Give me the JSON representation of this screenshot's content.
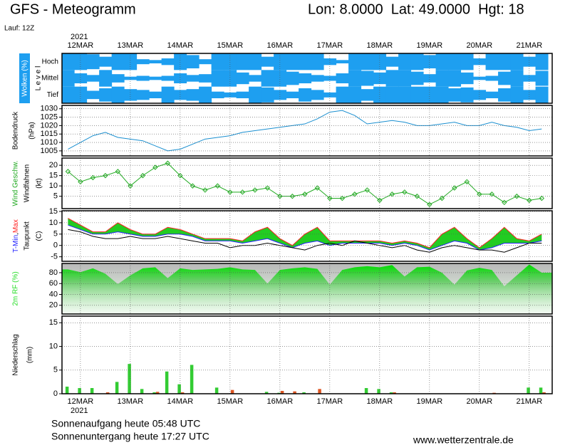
{
  "header": {
    "title": "GFS - Meteogramm",
    "location": "Lon: 8.0000  Lat: 49.0000  Hgt: 18",
    "run": "Lauf: 12Z"
  },
  "chart_data": {
    "type": "meteogram",
    "year": "2021",
    "x": [
      11.75,
      12,
      12.25,
      12.5,
      12.75,
      13,
      13.25,
      13.5,
      13.75,
      14,
      14.25,
      14.5,
      14.75,
      15,
      15.25,
      15.5,
      15.75,
      16,
      16.25,
      16.5,
      16.75,
      17,
      17.25,
      17.5,
      17.75,
      18,
      18.25,
      18.5,
      18.75,
      19,
      19.25,
      19.5,
      19.75,
      20,
      20.25,
      20.5,
      20.75,
      21,
      21.25
    ],
    "xlim": [
      11.63,
      21.46
    ],
    "xticks": [
      {
        "value": 12,
        "label": "12MAR"
      },
      {
        "value": 13,
        "label": "13MAR"
      },
      {
        "value": 14,
        "label": "14MAR"
      },
      {
        "value": 15,
        "label": "15MAR"
      },
      {
        "value": 16,
        "label": "16MAR"
      },
      {
        "value": 17,
        "label": "17MAR"
      },
      {
        "value": 18,
        "label": "18MAR"
      },
      {
        "value": 19,
        "label": "19MAR"
      },
      {
        "value": 20,
        "label": "20MAR"
      },
      {
        "value": 21,
        "label": "21MAR"
      }
    ],
    "panels": [
      {
        "type": "clouds",
        "title": "Wolken (%)",
        "title2": "L e v e l",
        "color": "#1e9ff0",
        "series": [
          {
            "name": "Hoch",
            "values": [
              100,
              100,
              90,
              60,
              100,
              100,
              30,
              20,
              40,
              100,
              80,
              30,
              100,
              100,
              100,
              100,
              60,
              100,
              100,
              100,
              100,
              40,
              20,
              100,
              100,
              100,
              60,
              100,
              100,
              80,
              100,
              100,
              100,
              40,
              100,
              100,
              100,
              60,
              100
            ]
          },
          {
            "name": "Mittel",
            "values": [
              100,
              60,
              40,
              100,
              50,
              20,
              30,
              20,
              30,
              60,
              40,
              50,
              100,
              100,
              70,
              40,
              100,
              100,
              80,
              60,
              40,
              30,
              60,
              100,
              90,
              70,
              100,
              100,
              80,
              50,
              100,
              100,
              70,
              20,
              30,
              80,
              100,
              40,
              90
            ]
          },
          {
            "name": "Tief",
            "values": [
              100,
              100,
              50,
              80,
              100,
              70,
              60,
              40,
              100,
              60,
              70,
              100,
              40,
              30,
              40,
              100,
              90,
              60,
              40,
              80,
              60,
              30,
              100,
              100,
              70,
              100,
              100,
              100,
              100,
              100,
              100,
              80,
              90,
              60,
              40,
              80,
              100,
              60,
              100
            ]
          }
        ]
      },
      {
        "type": "line",
        "title": "Bodendruck",
        "unit": "(hPa)",
        "ylim": [
          1002,
          1032
        ],
        "yticks": [
          1005,
          1010,
          1015,
          1020,
          1025,
          1030
        ],
        "grid": true,
        "series": [
          {
            "color": "#1a8fd0",
            "values": [
              1006,
              1010,
              1014,
              1016,
              1013,
              1012,
              1011,
              1008,
              1005,
              1006,
              1009,
              1012,
              1013,
              1014,
              1016,
              1017,
              1018,
              1019,
              1020,
              1021,
              1024,
              1028,
              1029,
              1026,
              1021,
              1022,
              1023,
              1022,
              1020,
              1020,
              1021,
              1022,
              1020,
              1020,
              1022,
              1020,
              1019,
              1017,
              1018
            ]
          }
        ]
      },
      {
        "type": "line",
        "title": "Wind Geschw.",
        "title2": "Windfahnen",
        "unit": "(kt)",
        "ylim": [
          -1,
          23.5
        ],
        "yticks": [
          5,
          10,
          15,
          20
        ],
        "grid": true,
        "markers": true,
        "series": [
          {
            "color": "#22aa22",
            "values": [
              17,
              12,
              14,
              15,
              17,
              10,
              15,
              19,
              21,
              15,
              10,
              8,
              10,
              7,
              7,
              8,
              9,
              5,
              5,
              6,
              9,
              4,
              4,
              6,
              8,
              3,
              6,
              7,
              5,
              1,
              4,
              9,
              12,
              6,
              6,
              2,
              5,
              3,
              4
            ]
          }
        ]
      },
      {
        "type": "range",
        "separator": ",",
        "title2": "Taupunkt",
        "unit": "(C)",
        "ylim": [
          -7,
          15.3
        ],
        "yticks": [
          -5,
          0,
          5,
          10,
          15
        ],
        "grid": true,
        "fill": "#22cc22",
        "series": [
          {
            "name": "T-Min",
            "color": "#2020ff",
            "values": [
              9,
              7,
              5,
              5,
              6,
              5,
              4,
              4,
              5,
              5,
              4,
              2,
              2,
              2,
              1,
              2,
              3,
              1,
              -1,
              1,
              2,
              0,
              1,
              1,
              1,
              1,
              0,
              1,
              0,
              -2,
              0,
              2,
              1,
              -2,
              -1,
              1,
              1,
              1,
              2
            ]
          },
          {
            "name": "Max",
            "color": "#ff2020",
            "values": [
              12,
              9,
              6,
              6,
              10,
              7,
              5,
              5,
              8,
              7,
              5,
              3,
              3,
              3,
              2,
              6,
              8,
              3,
              0,
              5,
              8,
              2,
              2,
              2,
              2,
              2,
              1,
              2,
              1,
              -1,
              5,
              8,
              3,
              -1,
              3,
              8,
              3,
              2,
              5
            ]
          },
          {
            "name": "Taupunkt",
            "color": "#000000",
            "values": [
              7,
              6,
              4,
              3,
              3,
              4,
              3,
              3,
              4,
              3,
              2,
              1,
              1,
              -1,
              0,
              0,
              1,
              0,
              -1,
              -2,
              0,
              1,
              0,
              2,
              1,
              0,
              -1,
              0,
              -2,
              -3,
              -1,
              0,
              -1,
              -2,
              -2,
              -3,
              -1,
              1,
              1
            ]
          }
        ]
      },
      {
        "type": "area",
        "title": "2m RF (%)",
        "color": "#22dd22",
        "ylim": [
          4,
          97
        ],
        "yticks": [
          20,
          40,
          60,
          80
        ],
        "grid": true,
        "series": [
          {
            "values": [
              86,
              81,
              88,
              78,
              59,
              75,
              88,
              90,
              70,
              88,
              85,
              86,
              87,
              90,
              86,
              85,
              60,
              85,
              88,
              90,
              87,
              58,
              85,
              90,
              92,
              90,
              94,
              73,
              90,
              91,
              80,
              58,
              84,
              89,
              85,
              55,
              75,
              95,
              80
            ]
          }
        ]
      },
      {
        "type": "bar",
        "title": "Niederschlag",
        "unit": "(mm)",
        "ylim": [
          0,
          16.4
        ],
        "yticks": [
          0,
          5,
          10,
          15
        ],
        "grid": true,
        "series": [
          {
            "color": "#33cc33",
            "values": [
              1.5,
              1.2,
              1.2,
              0,
              2.5,
              6.3,
              1,
              0.3,
              4.7,
              2,
              6.1,
              0,
              1.3,
              0,
              0,
              0,
              0.4,
              0.2,
              0,
              0.3,
              0,
              0,
              0,
              0,
              1.2,
              1,
              0.3,
              0,
              0,
              0,
              0,
              0,
              0,
              0,
              0,
              0,
              0,
              1.3,
              1.3
            ]
          },
          {
            "color": "#dd5522",
            "values": [
              0,
              0,
              0,
              0.3,
              0,
              0,
              0,
              0.4,
              0,
              0.3,
              0,
              0,
              0,
              0.8,
              0,
              0,
              0,
              0.6,
              0.5,
              0,
              1,
              0,
              0,
              0,
              0,
              0,
              0.3,
              0,
              0,
              0,
              0,
              0,
              0,
              0,
              0.2,
              0,
              0,
              0,
              0.3
            ]
          }
        ]
      }
    ]
  },
  "footer": {
    "sunrise": "Sonnenaufgang heute 05:48 UTC",
    "sunset": "Sonnenuntergang heute 17:27 UTC",
    "source": "www.wetterzentrale.de"
  }
}
